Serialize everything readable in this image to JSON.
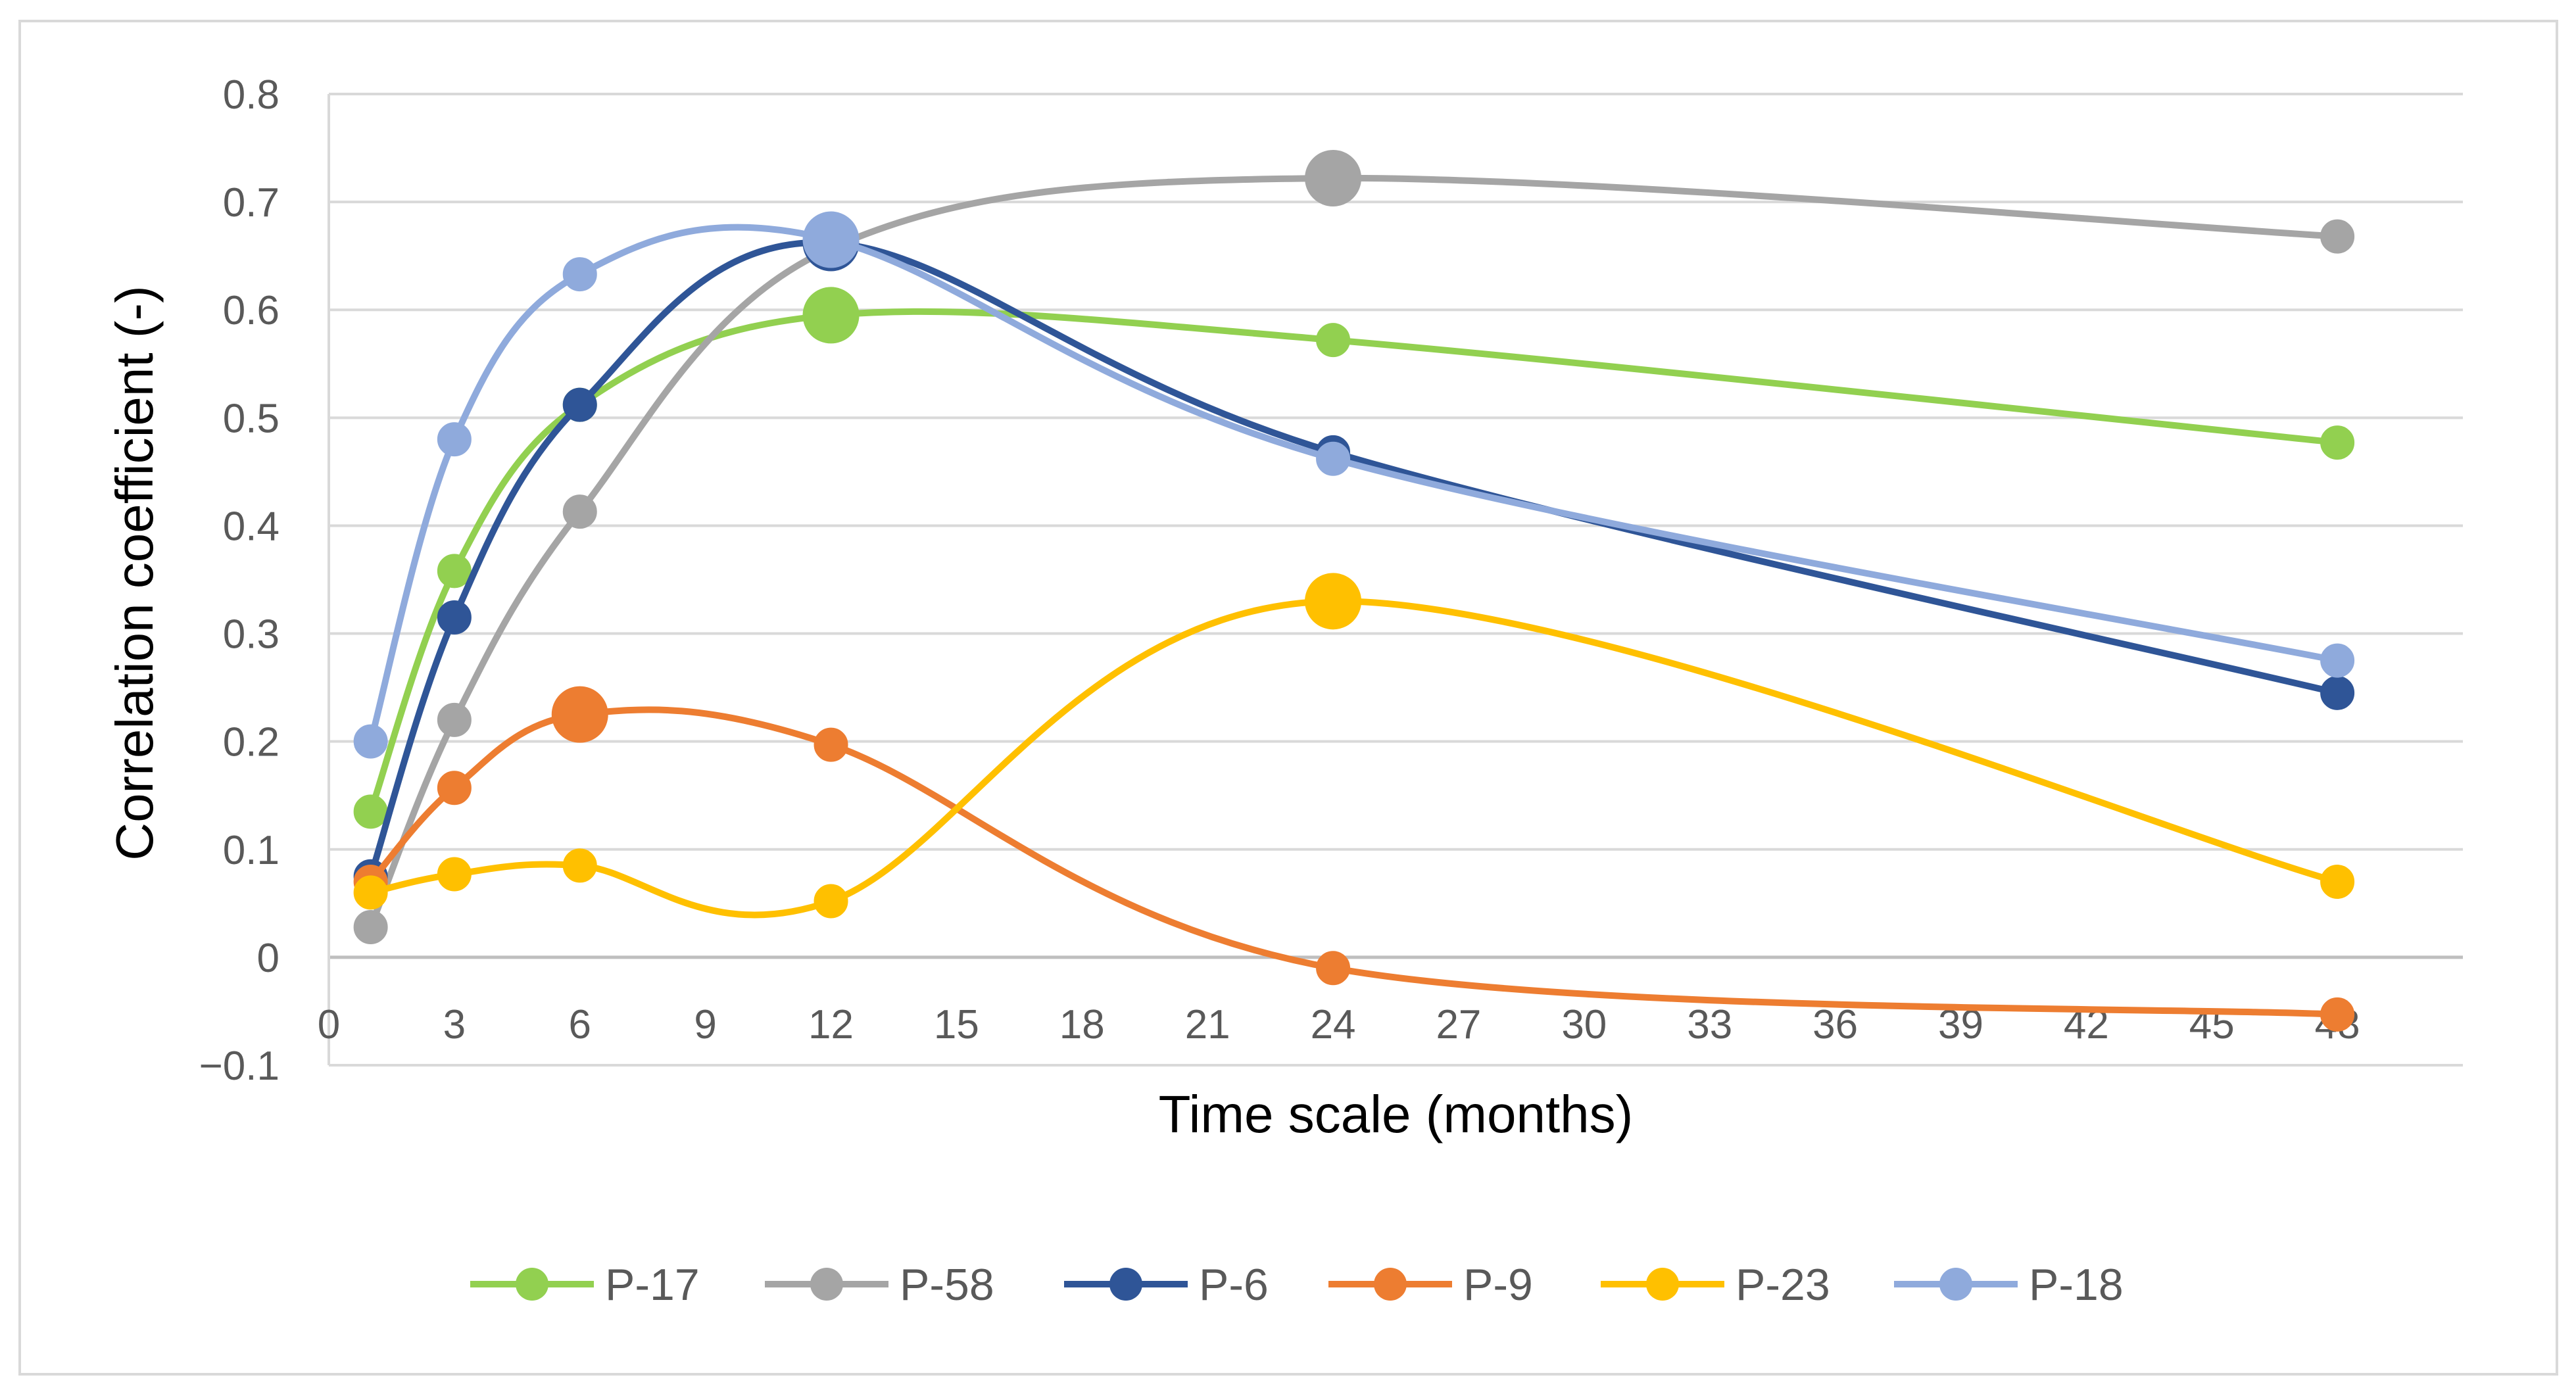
{
  "chart_data": {
    "type": "line",
    "smooth": true,
    "title": "",
    "xlabel": "Time scale (months)",
    "ylabel": "Correlation coefficient (-)",
    "xlim": [
      0,
      51
    ],
    "ylim": [
      -0.1,
      0.8
    ],
    "x_ticks": [
      0,
      3,
      6,
      9,
      12,
      15,
      18,
      21,
      24,
      27,
      30,
      33,
      36,
      39,
      42,
      45,
      48
    ],
    "x_tick_labels": [
      "0",
      "3",
      "6",
      "9",
      "12",
      "15",
      "18",
      "21",
      "24",
      "27",
      "30",
      "33",
      "36",
      "39",
      "42",
      "45",
      "48"
    ],
    "y_ticks": [
      -0.1,
      0,
      0.1,
      0.2,
      0.3,
      0.4,
      0.5,
      0.6,
      0.7,
      0.8
    ],
    "y_tick_labels": [
      "−0.1",
      "0",
      "0.1",
      "0.2",
      "0.3",
      "0.4",
      "0.5",
      "0.6",
      "0.7",
      "0.8"
    ],
    "grid": true,
    "legend_position": "bottom",
    "x": [
      1,
      3,
      6,
      12,
      24,
      48
    ],
    "series": [
      {
        "name": "P-17",
        "color": "#92d050",
        "values": [
          0.135,
          0.358,
          0.512,
          0.595,
          0.572,
          0.477
        ],
        "highlight_index": 3
      },
      {
        "name": "P-58",
        "color": "#a5a5a5",
        "values": [
          0.028,
          0.22,
          0.413,
          0.657,
          0.722,
          0.668
        ],
        "highlight_index": 4
      },
      {
        "name": "P-6",
        "color": "#2f5597",
        "values": [
          0.075,
          0.315,
          0.512,
          0.662,
          0.468,
          0.245
        ],
        "highlight_index": 3
      },
      {
        "name": "P-9",
        "color": "#ed7d31",
        "values": [
          0.07,
          0.157,
          0.225,
          0.197,
          -0.01,
          -0.053
        ],
        "highlight_index": 2
      },
      {
        "name": "P-23",
        "color": "#ffc000",
        "values": [
          0.06,
          0.077,
          0.085,
          0.052,
          0.33,
          0.07
        ],
        "highlight_index": 4
      },
      {
        "name": "P-18",
        "color": "#8faadc",
        "values": [
          0.2,
          0.48,
          0.633,
          0.665,
          0.462,
          0.275
        ],
        "highlight_index": 3
      }
    ]
  }
}
